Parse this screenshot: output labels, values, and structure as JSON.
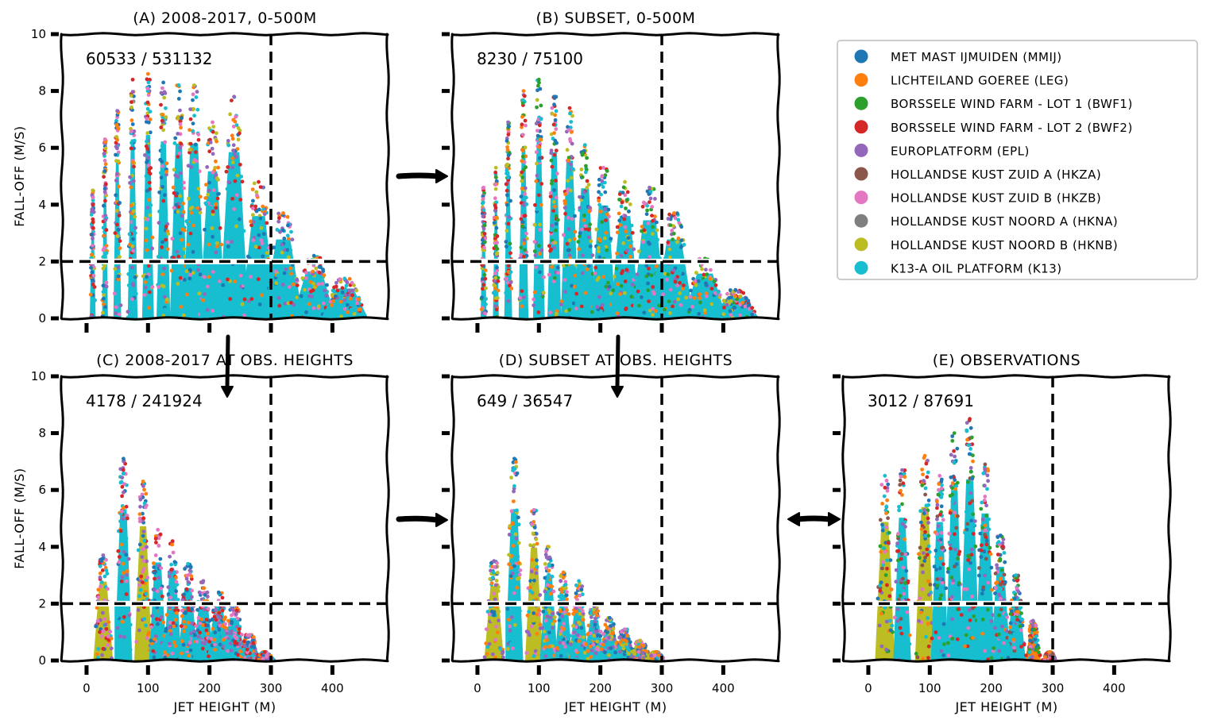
{
  "chart_data": {
    "type": "scatter",
    "figure_layout": "2 rows x 3 columns of panels (top-right slot holds legend)",
    "shared": {
      "xlabel": "JET HEIGHT (M)",
      "ylabel": "FALL-OFF (M/S)",
      "xlim": [
        -40,
        490
      ],
      "ylim": [
        0,
        10
      ],
      "xticks": [
        0,
        100,
        200,
        300,
        400
      ],
      "xtick_labels": [
        "0",
        "100",
        "200",
        "300",
        "400"
      ],
      "yticks": [
        0,
        2,
        4,
        6,
        8,
        10
      ],
      "ytick_labels": [
        "0",
        "2",
        "4",
        "6",
        "8",
        "10"
      ],
      "threshold_lines": {
        "horizontal_y": 2,
        "vertical_x": 300,
        "style": "dashed"
      },
      "grid": false,
      "style": "xkcd"
    },
    "legend": {
      "placement": "top-right",
      "entries": [
        {
          "label": "MET MAST IJMUIDEN (MMIJ)",
          "color": "#1f77b4"
        },
        {
          "label": "LICHTEILAND GOEREE (LEG)",
          "color": "#ff7f0e"
        },
        {
          "label": "BORSSELE WIND FARM - LOT 1 (BWF1)",
          "color": "#2ca02c"
        },
        {
          "label": "BORSSELE WIND FARM - LOT 2 (BWF2)",
          "color": "#d62728"
        },
        {
          "label": "EUROPLATFORM (EPL)",
          "color": "#9467bd"
        },
        {
          "label": "HOLLANDSE KUST ZUID A (HKZA)",
          "color": "#8c564b"
        },
        {
          "label": "HOLLANDSE KUST ZUID B (HKZB)",
          "color": "#e377c2"
        },
        {
          "label": "HOLLANDSE KUST NOORD A (HKNA)",
          "color": "#7f7f7f"
        },
        {
          "label": "HOLLANDSE KUST NOORD B (HKNB)",
          "color": "#bcbd22"
        },
        {
          "label": "K13-A OIL PLATFORM (K13)",
          "color": "#17becf"
        }
      ]
    },
    "panels": [
      {
        "id": "A",
        "title": "(A) 2008-2017, 0-500M",
        "count_label": "60533 / 531132",
        "count_num": 60533,
        "count_total": 531132,
        "show_xticklabels": false,
        "show_xlabel": false,
        "show_ylabel": true,
        "show_yticklabels": true,
        "columns": [
          {
            "x": 10,
            "max": 4.5,
            "w": 3
          },
          {
            "x": 30,
            "max": 6.3,
            "w": 3
          },
          {
            "x": 50,
            "max": 7.3,
            "w": 4
          },
          {
            "x": 75,
            "max": 8.4,
            "w": 5
          },
          {
            "x": 100,
            "max": 8.6,
            "w": 6
          },
          {
            "x": 125,
            "max": 8.3,
            "w": 7
          },
          {
            "x": 150,
            "max": 8.2,
            "w": 9
          },
          {
            "x": 175,
            "max": 8.2,
            "w": 11
          },
          {
            "x": 205,
            "max": 6.9,
            "w": 13
          },
          {
            "x": 240,
            "max": 7.8,
            "w": 15
          },
          {
            "x": 280,
            "max": 4.8,
            "w": 18
          },
          {
            "x": 320,
            "max": 3.7,
            "w": 20
          },
          {
            "x": 370,
            "max": 2.2,
            "w": 22
          },
          {
            "x": 420,
            "max": 1.4,
            "w": 24
          }
        ],
        "dominant": [
          "#17becf",
          "#bcbd22",
          "#e377c2",
          "#9467bd",
          "#d62728",
          "#ff7f0e",
          "#1f77b4"
        ]
      },
      {
        "id": "B",
        "title": "(B) SUBSET, 0-500M",
        "count_label": "8230 / 75100",
        "count_num": 8230,
        "count_total": 75100,
        "show_xticklabels": false,
        "show_xlabel": false,
        "show_ylabel": false,
        "show_yticklabels": false,
        "columns": [
          {
            "x": 10,
            "max": 4.6,
            "w": 3
          },
          {
            "x": 30,
            "max": 5.3,
            "w": 3
          },
          {
            "x": 50,
            "max": 6.9,
            "w": 4
          },
          {
            "x": 75,
            "max": 8.0,
            "w": 5
          },
          {
            "x": 100,
            "max": 8.4,
            "w": 6
          },
          {
            "x": 125,
            "max": 7.8,
            "w": 7
          },
          {
            "x": 150,
            "max": 7.4,
            "w": 9
          },
          {
            "x": 175,
            "max": 6.1,
            "w": 11
          },
          {
            "x": 205,
            "max": 5.3,
            "w": 13
          },
          {
            "x": 240,
            "max": 4.8,
            "w": 15
          },
          {
            "x": 280,
            "max": 4.6,
            "w": 18
          },
          {
            "x": 320,
            "max": 3.7,
            "w": 20
          },
          {
            "x": 370,
            "max": 2.1,
            "w": 22
          },
          {
            "x": 420,
            "max": 1.0,
            "w": 24
          }
        ],
        "dominant": [
          "#17becf",
          "#e377c2",
          "#bcbd22",
          "#9467bd",
          "#ff7f0e",
          "#2ca02c",
          "#1f77b4",
          "#d62728"
        ]
      },
      {
        "id": "C",
        "title": "(C) 2008-2017 AT OBS. HEIGHTS",
        "count_label": "4178 / 241924",
        "count_num": 4178,
        "count_total": 241924,
        "show_xticklabels": true,
        "show_xlabel": true,
        "show_ylabel": true,
        "show_yticklabels": true,
        "columns": [
          {
            "x": 27,
            "max": 3.7,
            "w": 10,
            "base": "#bcbd22"
          },
          {
            "x": 60,
            "max": 7.1,
            "w": 9
          },
          {
            "x": 92,
            "max": 6.3,
            "w": 9,
            "base": "#bcbd22"
          },
          {
            "x": 116,
            "max": 4.6,
            "w": 9
          },
          {
            "x": 140,
            "max": 4.2,
            "w": 9
          },
          {
            "x": 165,
            "max": 3.4,
            "w": 10
          },
          {
            "x": 190,
            "max": 2.8,
            "w": 11
          },
          {
            "x": 215,
            "max": 2.4,
            "w": 12
          },
          {
            "x": 240,
            "max": 2.0,
            "w": 12
          },
          {
            "x": 265,
            "max": 0.9,
            "w": 12
          },
          {
            "x": 290,
            "max": 0.3,
            "w": 10,
            "base": "#1f77b4"
          }
        ],
        "dominant": [
          "#17becf",
          "#9467bd",
          "#1f77b4",
          "#ff7f0e",
          "#e377c2",
          "#d62728"
        ]
      },
      {
        "id": "D",
        "title": "(D) SUBSET AT OBS. HEIGHTS",
        "count_label": "649 / 36547",
        "count_num": 649,
        "count_total": 36547,
        "show_xticklabels": true,
        "show_xlabel": true,
        "show_ylabel": false,
        "show_yticklabels": false,
        "columns": [
          {
            "x": 27,
            "max": 3.5,
            "w": 10,
            "base": "#bcbd22"
          },
          {
            "x": 60,
            "max": 7.1,
            "w": 9
          },
          {
            "x": 92,
            "max": 5.3,
            "w": 9,
            "base": "#bcbd22"
          },
          {
            "x": 116,
            "max": 4.0,
            "w": 9
          },
          {
            "x": 140,
            "max": 3.1,
            "w": 9
          },
          {
            "x": 165,
            "max": 2.8,
            "w": 10
          },
          {
            "x": 190,
            "max": 1.9,
            "w": 11
          },
          {
            "x": 215,
            "max": 1.5,
            "w": 12
          },
          {
            "x": 240,
            "max": 1.1,
            "w": 12
          },
          {
            "x": 265,
            "max": 0.7,
            "w": 12,
            "base": "#1f77b4"
          },
          {
            "x": 290,
            "max": 0.3,
            "w": 10,
            "base": "#1f77b4"
          }
        ],
        "dominant": [
          "#17becf",
          "#9467bd",
          "#1f77b4",
          "#e377c2",
          "#bcbd22",
          "#ff7f0e"
        ]
      },
      {
        "id": "E",
        "title": "(E) OBSERVATIONS",
        "count_label": "3012 / 87691",
        "count_num": 3012,
        "count_total": 87691,
        "show_xticklabels": true,
        "show_xlabel": true,
        "show_ylabel": false,
        "show_yticklabels": false,
        "columns": [
          {
            "x": 27,
            "max": 6.5,
            "w": 10,
            "base": "#bcbd22"
          },
          {
            "x": 55,
            "max": 6.7,
            "w": 9
          },
          {
            "x": 92,
            "max": 7.2,
            "w": 10,
            "base": "#bcbd22"
          },
          {
            "x": 116,
            "max": 6.5,
            "w": 9
          },
          {
            "x": 140,
            "max": 8.0,
            "w": 9
          },
          {
            "x": 165,
            "max": 8.5,
            "w": 10
          },
          {
            "x": 190,
            "max": 6.9,
            "w": 10
          },
          {
            "x": 215,
            "max": 4.4,
            "w": 10
          },
          {
            "x": 240,
            "max": 3.0,
            "w": 10
          },
          {
            "x": 268,
            "max": 1.4,
            "w": 8,
            "base": "#ff7f0e"
          },
          {
            "x": 295,
            "max": 0.3,
            "w": 8,
            "base": "#1f77b4"
          }
        ],
        "dominant": [
          "#1f77b4",
          "#17becf",
          "#9467bd",
          "#ff7f0e",
          "#e377c2",
          "#2ca02c",
          "#d62728",
          "#8c564b"
        ]
      }
    ],
    "arrows": [
      {
        "from": "A",
        "to": "B",
        "kind": "one-way"
      },
      {
        "from": "A",
        "to": "C",
        "kind": "one-way"
      },
      {
        "from": "B",
        "to": "D",
        "kind": "one-way"
      },
      {
        "from": "C",
        "to": "D",
        "kind": "one-way"
      },
      {
        "from": "D",
        "to": "E",
        "kind": "two-way"
      }
    ]
  }
}
